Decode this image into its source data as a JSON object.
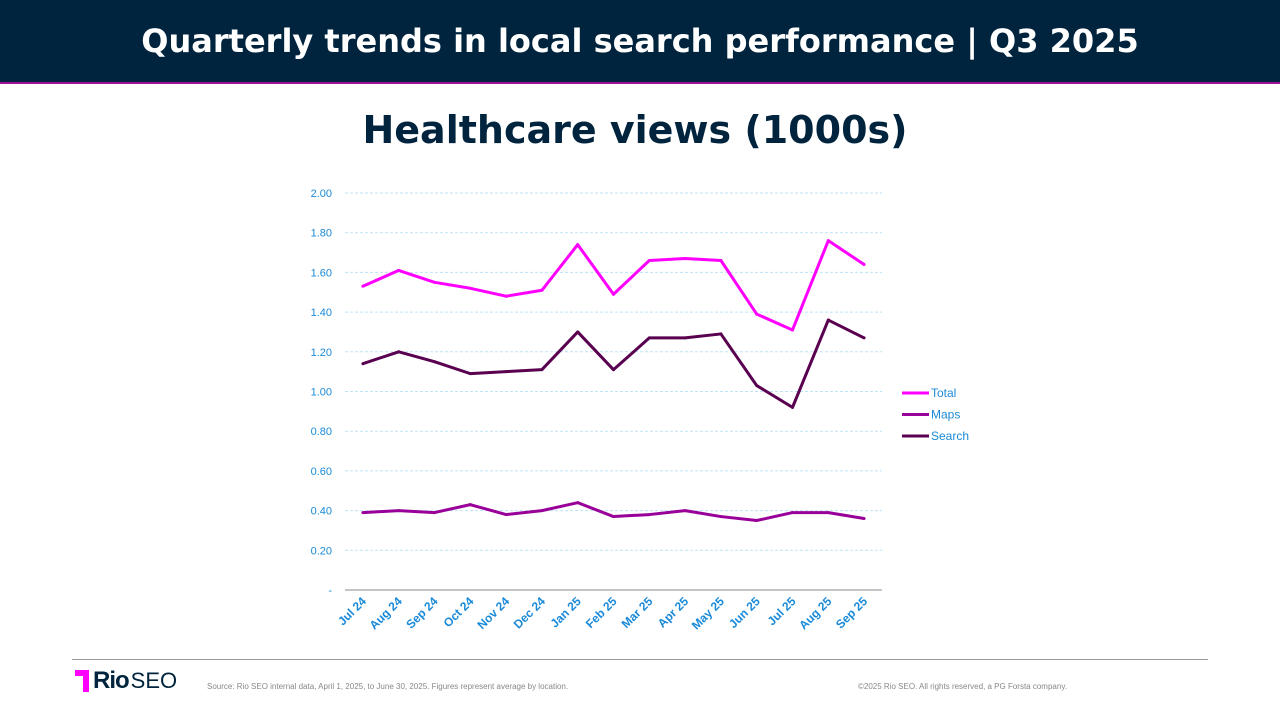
{
  "header": {
    "title": "Quarterly trends in local search performance  |  Q3 2025"
  },
  "footer": {
    "logo_text": "Rio SEO",
    "source": "Source: Rio SEO internal data, April 1, 2025, to June 30, 2025. Figures represent average by location.",
    "copyright": "©2025 Rio SEO. All rights reserved, a PG Forsta company."
  },
  "colors": {
    "banner": "#00243d",
    "total": "#ff00ff",
    "maps": "#990099",
    "search": "#5a0050",
    "axis_text": "#1a8ad8",
    "grid": "#bde3f7"
  },
  "chart_data": {
    "type": "line",
    "title": "Healthcare views (1000s)",
    "categories": [
      "Jul 24",
      "Aug 24",
      "Sep 24",
      "Oct 24",
      "Nov 24",
      "Dec 24",
      "Jan 25",
      "Feb 25",
      "Mar 25",
      "Apr 25",
      "May 25",
      "Jun 25",
      "Jul 25",
      "Aug 25",
      "Sep 25"
    ],
    "ylim": [
      0,
      2
    ],
    "yticks": [
      "-",
      "0.20",
      "0.40",
      "0.60",
      "0.80",
      "1.00",
      "1.20",
      "1.40",
      "1.60",
      "1.80",
      "2.00"
    ],
    "grid": true,
    "legend_position": "right",
    "series": [
      {
        "name": "Total",
        "values": [
          1.53,
          1.61,
          1.55,
          1.52,
          1.48,
          1.51,
          1.74,
          1.49,
          1.66,
          1.67,
          1.66,
          1.39,
          1.31,
          1.76,
          1.64
        ]
      },
      {
        "name": "Maps",
        "values": [
          0.39,
          0.4,
          0.39,
          0.43,
          0.38,
          0.4,
          0.44,
          0.37,
          0.38,
          0.4,
          0.37,
          0.35,
          0.39,
          0.39,
          0.36
        ]
      },
      {
        "name": "Search",
        "values": [
          1.14,
          1.2,
          1.15,
          1.09,
          1.1,
          1.11,
          1.3,
          1.11,
          1.27,
          1.27,
          1.29,
          1.03,
          0.92,
          1.36,
          1.27
        ]
      }
    ]
  }
}
